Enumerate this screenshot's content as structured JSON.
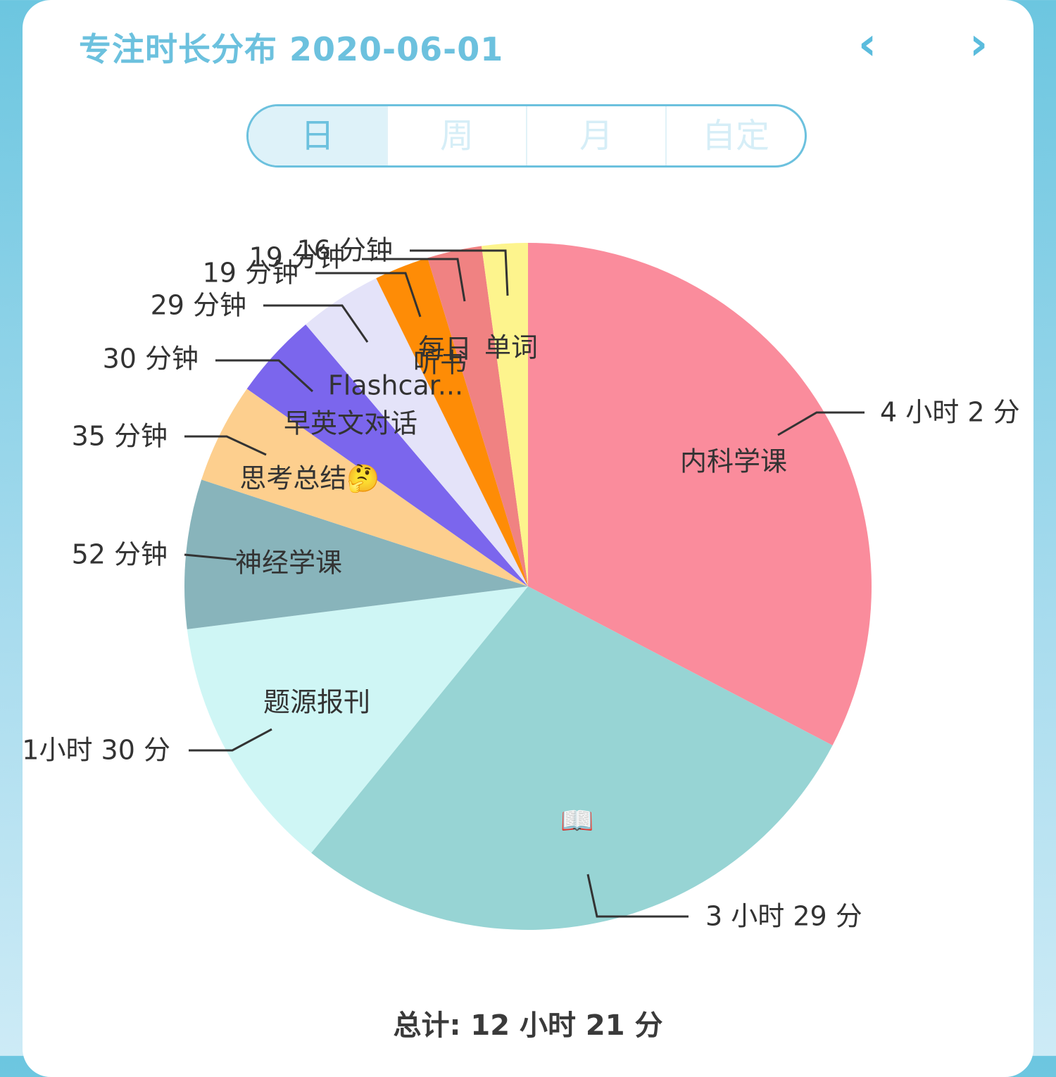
{
  "header": {
    "title": "专注时长分布 2020-06-01",
    "prev_icon": "chevron-left-icon",
    "next_icon": "chevron-right-icon"
  },
  "range_tabs": [
    {
      "label": "日",
      "active": true
    },
    {
      "label": "周",
      "active": false
    },
    {
      "label": "月",
      "active": false
    },
    {
      "label": "自定",
      "active": false
    }
  ],
  "total": {
    "label": "总计: 12 小时 21 分"
  },
  "chart_data": {
    "type": "pie",
    "unit": "minutes",
    "slices": [
      {
        "name": "内科学课",
        "value": 242,
        "label": "4 小时 2 分",
        "color": "#fa8c9c"
      },
      {
        "name": "📖",
        "value": 209,
        "label": "3 小时 29 分",
        "color": "#97d4d4"
      },
      {
        "name": "题源报刊",
        "value": 90,
        "label": "1小时 30 分",
        "color": "#cff6f5"
      },
      {
        "name": "神经学课",
        "value": 52,
        "label": "52 分钟",
        "color": "#88b4bb"
      },
      {
        "name": "思考总结🤔",
        "value": 35,
        "label": "35 分钟",
        "color": "#fdcf8e"
      },
      {
        "name": "早英文对话",
        "value": 30,
        "label": "30 分钟",
        "color": "#7b66ed"
      },
      {
        "name": "Flashcar...",
        "value": 29,
        "label": "29 分钟",
        "color": "#e4e3f9"
      },
      {
        "name": "听书",
        "value": 19,
        "label": "19 分钟",
        "color": "#fe8c06"
      },
      {
        "name": "每日",
        "value": 19,
        "label": "19 分钟",
        "color": "#f08282"
      },
      {
        "name": "单词",
        "value": 16,
        "label": "16 分钟",
        "color": "#fdf48d"
      }
    ]
  }
}
